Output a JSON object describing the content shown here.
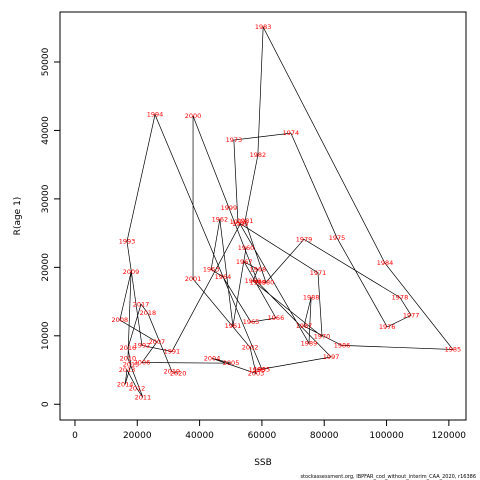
{
  "chart_data": {
    "type": "scatter",
    "x_label": "SSB",
    "y_label": "R(age 1)",
    "footnote": "stockassessment.org, IBPFAR_cod_without_interim_CAA_2020, r16386",
    "line_color": "#000000",
    "label_color": "#ff0000",
    "xlim": [
      -4800,
      125500
    ],
    "ylim": [
      -2300,
      57300
    ],
    "xticks": [
      0,
      20000,
      40000,
      60000,
      80000,
      100000,
      120000
    ],
    "yticks": [
      0,
      10000,
      20000,
      30000,
      40000,
      50000
    ],
    "labels": [
      "1960",
      "1961",
      "1962",
      "1963",
      "1964",
      "1965",
      "1966",
      "1967",
      "1968",
      "1969",
      "1970",
      "1971",
      "1972",
      "1973",
      "1974",
      "1975",
      "1976",
      "1977",
      "1978",
      "1979",
      "1980",
      "1981",
      "1982",
      "1983",
      "1984",
      "1985",
      "1986",
      "1987",
      "1988",
      "1989",
      "1990",
      "1991",
      "1992",
      "1993",
      "1994",
      "1995",
      "1996",
      "1997",
      "1998",
      "1999",
      "2000",
      "2001",
      "2002",
      "2003",
      "2004",
      "2005",
      "2006",
      "2007",
      "2008",
      "2009",
      "2010",
      "2011",
      "2012",
      "2013",
      "2014",
      "2015",
      "2016",
      "2017",
      "2018",
      "2019",
      "2020"
    ],
    "x": [
      54900,
      50700,
      46500,
      43700,
      47500,
      56500,
      64500,
      54300,
      58700,
      57100,
      79300,
      78000,
      52300,
      51000,
      69300,
      84100,
      100200,
      107900,
      104300,
      73500,
      61300,
      54600,
      58700,
      60400,
      99500,
      121300,
      85700,
      73500,
      75800,
      75100,
      53000,
      31100,
      21500,
      16700,
      25700,
      60000,
      58400,
      82200,
      58700,
      49400,
      37900,
      37900,
      56200,
      58100,
      44000,
      50100,
      21500,
      26300,
      14400,
      18000,
      17000,
      21800,
      19900,
      16700,
      16100,
      18000,
      17000,
      21200,
      23400,
      31100,
      33100
    ],
    "values": [
      22800,
      11400,
      27000,
      19700,
      18600,
      12000,
      12600,
      20800,
      19700,
      18000,
      9900,
      19200,
      26600,
      38600,
      39600,
      24300,
      11300,
      13000,
      15600,
      24100,
      17800,
      26800,
      36400,
      55100,
      20600,
      8000,
      8600,
      11400,
      15600,
      8900,
      26300,
      7700,
      8600,
      23800,
      42300,
      5100,
      5000,
      6900,
      17800,
      28700,
      42100,
      18300,
      8300,
      4500,
      6700,
      6000,
      6100,
      9100,
      12300,
      19300,
      6700,
      1000,
      2300,
      5000,
      2900,
      5800,
      8200,
      14600,
      13300,
      4800,
      4500
    ]
  }
}
